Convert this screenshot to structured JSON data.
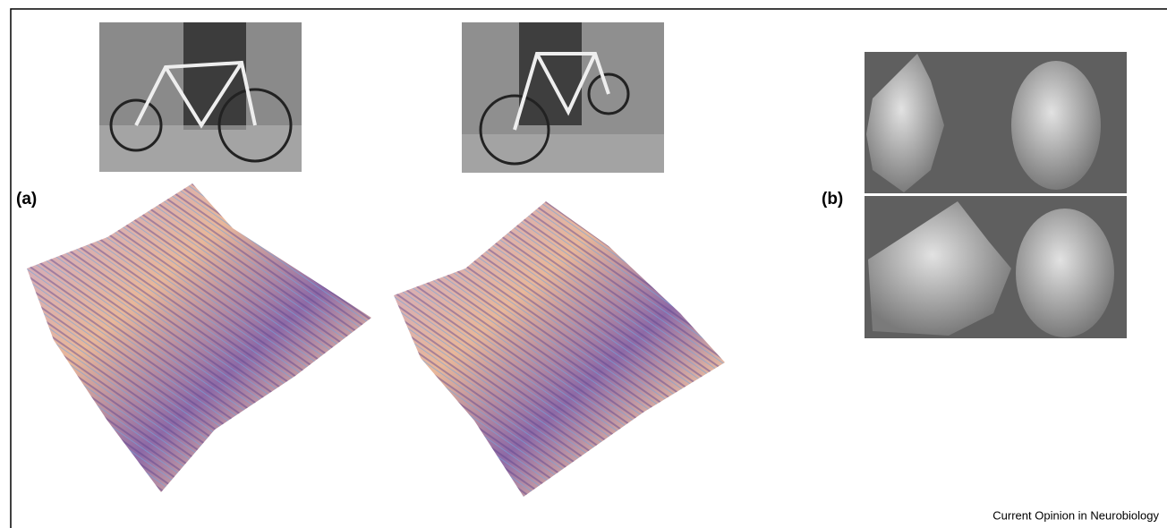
{
  "panel_a": {
    "label": "(a)"
  },
  "panel_b": {
    "label": "(b)"
  },
  "footer": {
    "journal": "Current Opinion in Neurobiology"
  }
}
